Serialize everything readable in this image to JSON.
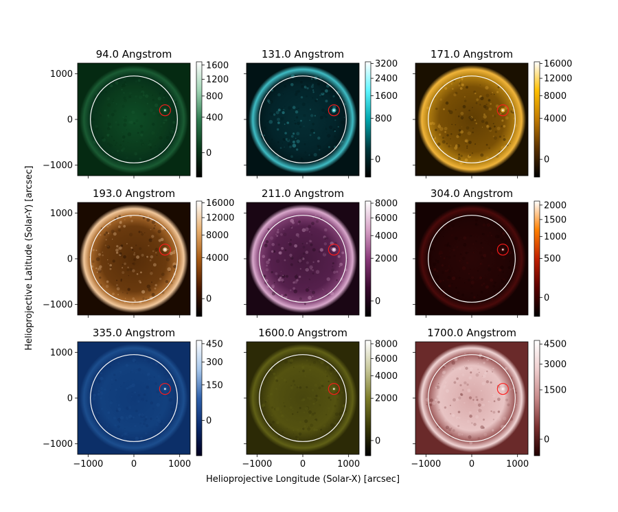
{
  "figure": {
    "xlabel": "Helioprojective Longitude (Solar-X) [arcsec]",
    "ylabel": "Helioprojective Latitude (Solar-Y) [arcsec]"
  },
  "chart_data": [
    {
      "type": "heatmap",
      "title": "94.0 Angstrom",
      "x_ticks": [
        -1000,
        0,
        1000
      ],
      "y_ticks": [
        1000,
        0,
        -1000
      ],
      "xlim": [
        -1230,
        1230
      ],
      "ylim": [
        -1230,
        1230
      ],
      "colorbar": {
        "ticks": [
          "1600",
          "1200",
          "800",
          "400",
          "0"
        ],
        "tick_values": [
          1600,
          1200,
          800,
          400,
          0
        ],
        "range": [
          -80,
          1700
        ]
      },
      "colors": {
        "disk": "#0a3a1c",
        "mid": "#0e4d26",
        "edge": "#06301a",
        "bg": "#052a12",
        "limb": "#1a5b33"
      },
      "colormap": [
        "#000000",
        "#0a3a1c",
        "#2f7a50",
        "#9fd4b4",
        "#ffffff"
      ],
      "solar_limb_radius": 950,
      "highlight": {
        "x": 680,
        "y": 200,
        "r": 120
      }
    },
    {
      "type": "heatmap",
      "title": "131.0 Angstrom",
      "x_ticks": [
        -1000,
        0,
        1000
      ],
      "y_ticks": [
        1000,
        0,
        -1000
      ],
      "xlim": [
        -1230,
        1230
      ],
      "ylim": [
        -1230,
        1230
      ],
      "colorbar": {
        "ticks": [
          "3200",
          "2400",
          "1600",
          "800",
          "0"
        ],
        "tick_values": [
          3200,
          2400,
          1600,
          800,
          0
        ],
        "range": [
          -80,
          3300
        ]
      },
      "colors": {
        "disk": "#03242a",
        "mid": "#042e34",
        "edge": "#021a1e",
        "bg": "#011315",
        "limb": "#3fbcc4"
      },
      "colormap": [
        "#000000",
        "#003a3e",
        "#00a6ad",
        "#5ff6ff",
        "#ffffff"
      ],
      "solar_limb_radius": 950,
      "highlight": {
        "x": 680,
        "y": 200,
        "r": 120
      }
    },
    {
      "type": "heatmap",
      "title": "171.0 Angstrom",
      "x_ticks": [
        -1000,
        0,
        1000
      ],
      "y_ticks": [
        1000,
        0,
        -1000
      ],
      "xlim": [
        -1230,
        1230
      ],
      "ylim": [
        -1230,
        1230
      ],
      "colorbar": {
        "ticks": [
          "16000",
          "12000",
          "8000",
          "4000",
          "0"
        ],
        "tick_values": [
          16000,
          12000,
          8000,
          4000,
          0
        ],
        "range": [
          -400,
          16500
        ]
      },
      "colors": {
        "disk": "#7a5005",
        "mid": "#5f3d03",
        "edge": "#b07d10",
        "bg": "#1a1000",
        "limb": "#f0b43a"
      },
      "colormap": [
        "#000000",
        "#5a3200",
        "#c07a00",
        "#ffc000",
        "#ffffff"
      ],
      "solar_limb_radius": 950,
      "highlight": {
        "x": 680,
        "y": 200,
        "r": 120
      }
    },
    {
      "type": "heatmap",
      "title": "193.0 Angstrom",
      "x_ticks": [
        -1000,
        0,
        1000
      ],
      "y_ticks": [
        1000,
        0,
        -1000
      ],
      "xlim": [
        -1230,
        1230
      ],
      "ylim": [
        -1230,
        1230
      ],
      "colorbar": {
        "ticks": [
          "16000",
          "12000",
          "8000",
          "4000",
          "0"
        ],
        "tick_values": [
          16000,
          12000,
          8000,
          4000,
          0
        ],
        "range": [
          -400,
          16500
        ]
      },
      "colors": {
        "disk": "#6a3a0e",
        "mid": "#552c08",
        "edge": "#a8682a",
        "bg": "#1a0a00",
        "limb": "#f2c89c"
      },
      "colormap": [
        "#000000",
        "#4a1a00",
        "#a65a14",
        "#e8b070",
        "#ffffff"
      ],
      "solar_limb_radius": 950,
      "highlight": {
        "x": 680,
        "y": 200,
        "r": 120
      }
    },
    {
      "type": "heatmap",
      "title": "211.0 Angstrom",
      "x_ticks": [
        -1000,
        0,
        1000
      ],
      "y_ticks": [
        1000,
        0,
        -1000
      ],
      "xlim": [
        -1230,
        1230
      ],
      "ylim": [
        -1230,
        1230
      ],
      "colorbar": {
        "ticks": [
          "8000",
          "6000",
          "4000",
          "2000",
          "0"
        ],
        "tick_values": [
          8000,
          6000,
          4000,
          2000,
          0
        ],
        "range": [
          -150,
          8300
        ]
      },
      "colors": {
        "disk": "#55204c",
        "mid": "#44183c",
        "edge": "#7e3e70",
        "bg": "#1a0614",
        "limb": "#d9a8cc"
      },
      "colormap": [
        "#000000",
        "#3a0a30",
        "#8a3a7a",
        "#d7a2c6",
        "#ffffff"
      ],
      "solar_limb_radius": 950,
      "highlight": {
        "x": 680,
        "y": 200,
        "r": 120
      }
    },
    {
      "type": "heatmap",
      "title": "304.0 Angstrom",
      "x_ticks": [
        -1000,
        0,
        1000
      ],
      "y_ticks": [
        1000,
        0,
        -1000
      ],
      "xlim": [
        -1230,
        1230
      ],
      "ylim": [
        -1230,
        1230
      ],
      "colorbar": {
        "ticks": [
          "2000",
          "1500",
          "1000",
          "500",
          "0"
        ],
        "tick_values": [
          2000,
          1500,
          1000,
          500,
          0
        ],
        "range": [
          -60,
          2150
        ]
      },
      "colors": {
        "disk": "#230404",
        "mid": "#2a0606",
        "edge": "#1e0303",
        "bg": "#140202",
        "limb": "#4a0a0a"
      },
      "colormap": [
        "#000000",
        "#5a0000",
        "#c02000",
        "#ff8000",
        "#ffffff"
      ],
      "solar_limb_radius": 950,
      "highlight": {
        "x": 680,
        "y": 200,
        "r": 120
      }
    },
    {
      "type": "heatmap",
      "title": "335.0 Angstrom",
      "x_ticks": [
        -1000,
        0,
        1000
      ],
      "y_ticks": [
        1000,
        0,
        -1000
      ],
      "xlim": [
        -1230,
        1230
      ],
      "ylim": [
        -1230,
        1230
      ],
      "colorbar": {
        "ticks": [
          "450",
          "300",
          "150",
          "0"
        ],
        "tick_values": [
          450,
          300,
          150,
          0
        ],
        "range": [
          -50,
          480
        ]
      },
      "colors": {
        "disk": "#12407e",
        "mid": "#0f3a78",
        "edge": "#0e3470",
        "bg": "#0c2f68",
        "limb": "#1c4e8e"
      },
      "colormap": [
        "#000020",
        "#0a2a6a",
        "#2e60aa",
        "#a8c8ec",
        "#ffffff"
      ],
      "solar_limb_radius": 950,
      "highlight": {
        "x": 680,
        "y": 200,
        "r": 120
      }
    },
    {
      "type": "heatmap",
      "title": "1600.0 Angstrom",
      "x_ticks": [
        -1000,
        0,
        1000
      ],
      "y_ticks": [
        1000,
        0,
        -1000
      ],
      "xlim": [
        -1230,
        1230
      ],
      "ylim": [
        -1230,
        1230
      ],
      "colorbar": {
        "ticks": [
          "8000",
          "6000",
          "4000",
          "2000",
          "0"
        ],
        "tick_values": [
          8000,
          6000,
          4000,
          2000,
          0
        ],
        "range": [
          -150,
          8500
        ]
      },
      "colors": {
        "disk": "#545210",
        "mid": "#48460e",
        "edge": "#38360a",
        "bg": "#2c2a06",
        "limb": "#606016"
      },
      "colormap": [
        "#000000",
        "#3a3a08",
        "#7e7e2a",
        "#c8c89a",
        "#ffffff"
      ],
      "solar_limb_radius": 950,
      "highlight": {
        "x": 680,
        "y": 200,
        "r": 120
      }
    },
    {
      "type": "heatmap",
      "title": "1700.0 Angstrom",
      "x_ticks": [
        -1000,
        0,
        1000
      ],
      "y_ticks": [
        1000,
        0,
        -1000
      ],
      "xlim": [
        -1230,
        1230
      ],
      "ylim": [
        -1230,
        1230
      ],
      "colorbar": {
        "ticks": [
          "4500",
          "3000",
          "1500",
          "0"
        ],
        "tick_values": [
          4500,
          3000,
          1500,
          0
        ],
        "range": [
          -100,
          4800
        ]
      },
      "colors": {
        "disk": "#e8c4c4",
        "mid": "#d8a8a8",
        "edge": "#9c5858",
        "bg": "#6a2a2a",
        "limb": "#f0d4d4"
      },
      "colormap": [
        "#200000",
        "#7a3030",
        "#c88a8a",
        "#f0d0d0",
        "#ffffff"
      ],
      "solar_limb_radius": 950,
      "highlight": {
        "x": 680,
        "y": 200,
        "r": 120
      }
    }
  ]
}
